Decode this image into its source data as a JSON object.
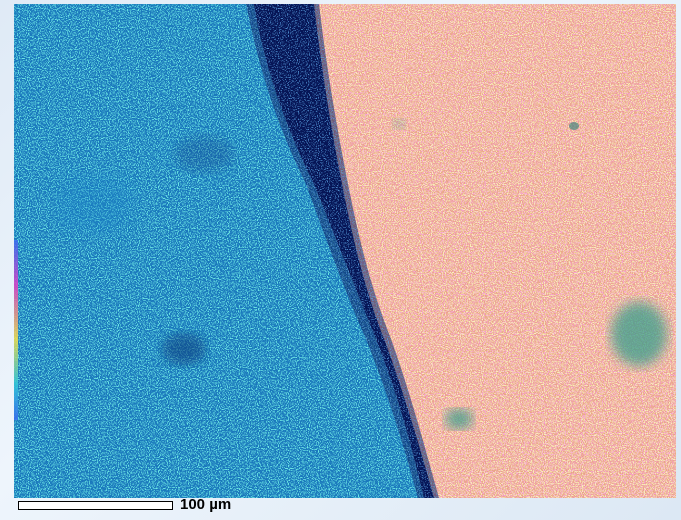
{
  "image": {
    "description_colors": {
      "left_region": "#1d7fc0",
      "left_speckle": "#3fd0c8",
      "boundary_band": "#06104e",
      "right_region": "#e8a888",
      "right_speckle_pink": "#f06ab4",
      "right_speckle_yellow": "#f2e58a",
      "inclusion": "#3a9e8c"
    }
  },
  "scale_bar": {
    "label": "100 µm"
  }
}
